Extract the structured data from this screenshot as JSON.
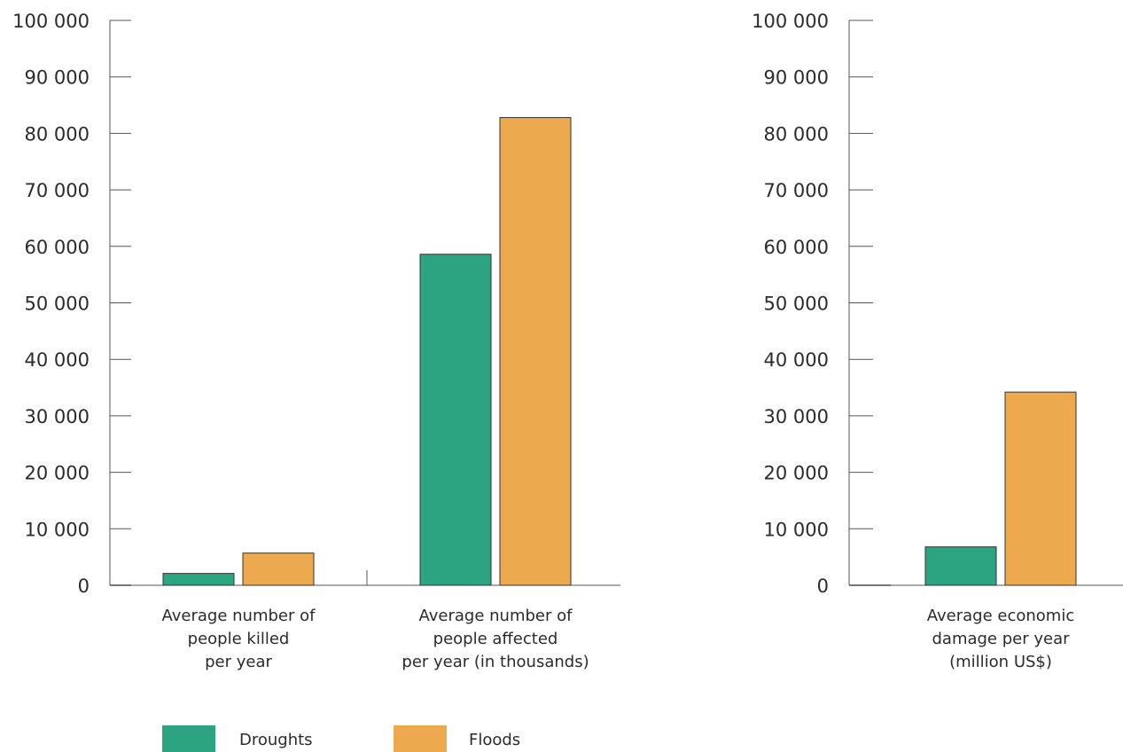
{
  "chart_data": [
    {
      "type": "bar",
      "categories": [
        [
          "Average number of",
          "people killed",
          "per year"
        ],
        [
          "Average number of",
          "people affected",
          "per year (in thousands)"
        ]
      ],
      "series": [
        {
          "name": "Droughts",
          "values": [
            2100,
            58600
          ]
        },
        {
          "name": "Floods",
          "values": [
            5700,
            82800
          ]
        }
      ],
      "ylim": [
        0,
        100000
      ],
      "yticks": [
        "0",
        "10 000",
        "20 000",
        "30 000",
        "40 000",
        "50 000",
        "60 000",
        "70 000",
        "80 000",
        "90 000",
        "100 000"
      ],
      "grid": false
    },
    {
      "type": "bar",
      "categories": [
        [
          "Average economic",
          "damage per year",
          "(million US$)"
        ]
      ],
      "series": [
        {
          "name": "Droughts",
          "values": [
            6800
          ]
        },
        {
          "name": "Floods",
          "values": [
            34200
          ]
        }
      ],
      "ylim": [
        0,
        100000
      ],
      "yticks": [
        "0",
        "10 000",
        "20 000",
        "30 000",
        "40 000",
        "50 000",
        "60 000",
        "70 000",
        "80 000",
        "90 000",
        "100 000"
      ],
      "grid": false
    }
  ],
  "legend": {
    "placement": "bottom-left",
    "items": [
      {
        "name": "Droughts",
        "color": "#2ca482"
      },
      {
        "name": "Floods",
        "color": "#eca94d"
      }
    ]
  }
}
